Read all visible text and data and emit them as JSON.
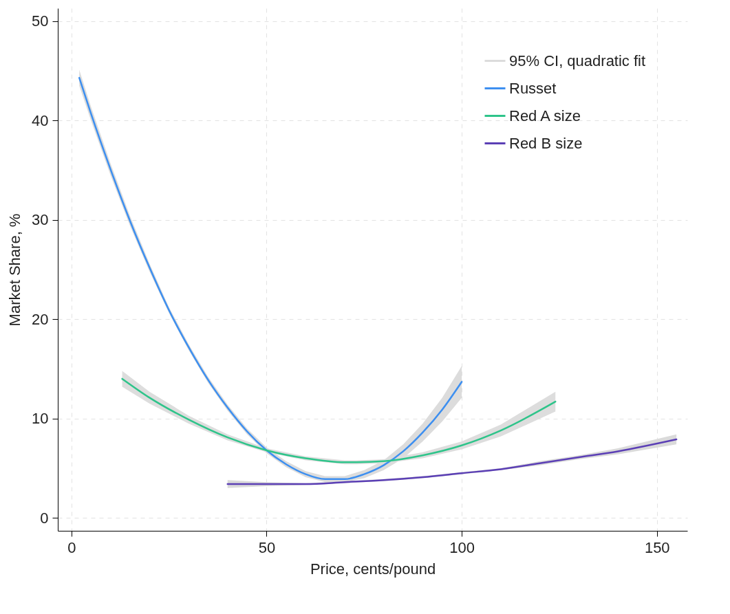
{
  "chart_data": {
    "type": "line",
    "xlabel": "Price, cents/pound",
    "ylabel": "Market Share, %",
    "xlim": [
      -3.5,
      157.8
    ],
    "ylim": [
      -1.3,
      51.3
    ],
    "xticks": [
      0,
      50,
      100,
      150
    ],
    "yticks": [
      0,
      10,
      20,
      30,
      40,
      50
    ],
    "grid": true,
    "legend": "top right",
    "annotations": [
      "95% CI, quadratic fit"
    ],
    "series": [
      {
        "name": "Russet",
        "color": "#3d8ff0",
        "x": [
          2,
          5,
          10,
          15,
          20,
          25,
          30,
          35,
          40,
          45,
          50,
          55,
          60,
          65,
          70,
          75,
          80,
          85,
          90,
          95,
          100
        ],
        "values": [
          44.3,
          40.7,
          35.1,
          29.9,
          25.2,
          20.9,
          17.2,
          13.9,
          11.1,
          8.7,
          6.8,
          5.4,
          4.4,
          3.9,
          3.9,
          4.4,
          5.3,
          6.7,
          8.6,
          10.9,
          13.7
        ],
        "lower": [
          43.5,
          40.0,
          34.5,
          29.4,
          24.8,
          20.6,
          16.9,
          13.6,
          10.8,
          8.4,
          6.5,
          5.1,
          4.1,
          3.6,
          3.6,
          4.0,
          4.8,
          6.0,
          7.7,
          9.7,
          12.1
        ],
        "upper": [
          45.1,
          41.4,
          35.7,
          30.4,
          25.6,
          21.2,
          17.5,
          14.2,
          11.4,
          9.0,
          7.1,
          5.7,
          4.7,
          4.2,
          4.2,
          4.8,
          5.8,
          7.4,
          9.5,
          12.1,
          15.3
        ]
      },
      {
        "name": "Red A size",
        "color": "#2ec48a",
        "x": [
          13,
          20,
          30,
          40,
          50,
          60,
          70,
          73,
          80,
          90,
          100,
          110,
          124
        ],
        "values": [
          14.0,
          12.1,
          9.9,
          8.1,
          6.8,
          6.0,
          5.6,
          5.6,
          5.7,
          6.3,
          7.3,
          8.8,
          11.7
        ],
        "lower": [
          13.2,
          11.5,
          9.5,
          7.8,
          6.6,
          5.8,
          5.4,
          5.4,
          5.5,
          6.0,
          6.9,
          8.2,
          10.7
        ],
        "upper": [
          14.8,
          12.7,
          10.3,
          8.4,
          7.0,
          6.2,
          5.8,
          5.8,
          5.9,
          6.6,
          7.7,
          9.4,
          12.7
        ]
      },
      {
        "name": "Red B size",
        "color": "#5b3fb5",
        "x": [
          40,
          50,
          60,
          70,
          80,
          90,
          100,
          110,
          120,
          130,
          140,
          155
        ],
        "values": [
          3.4,
          3.4,
          3.4,
          3.6,
          3.8,
          4.1,
          4.5,
          4.9,
          5.5,
          6.1,
          6.7,
          7.9
        ],
        "lower": [
          3.0,
          3.2,
          3.3,
          3.5,
          3.7,
          4.0,
          4.4,
          4.8,
          5.3,
          5.9,
          6.4,
          7.4
        ],
        "upper": [
          3.8,
          3.6,
          3.5,
          3.7,
          3.9,
          4.2,
          4.6,
          5.0,
          5.7,
          6.3,
          7.0,
          8.4
        ]
      }
    ]
  }
}
